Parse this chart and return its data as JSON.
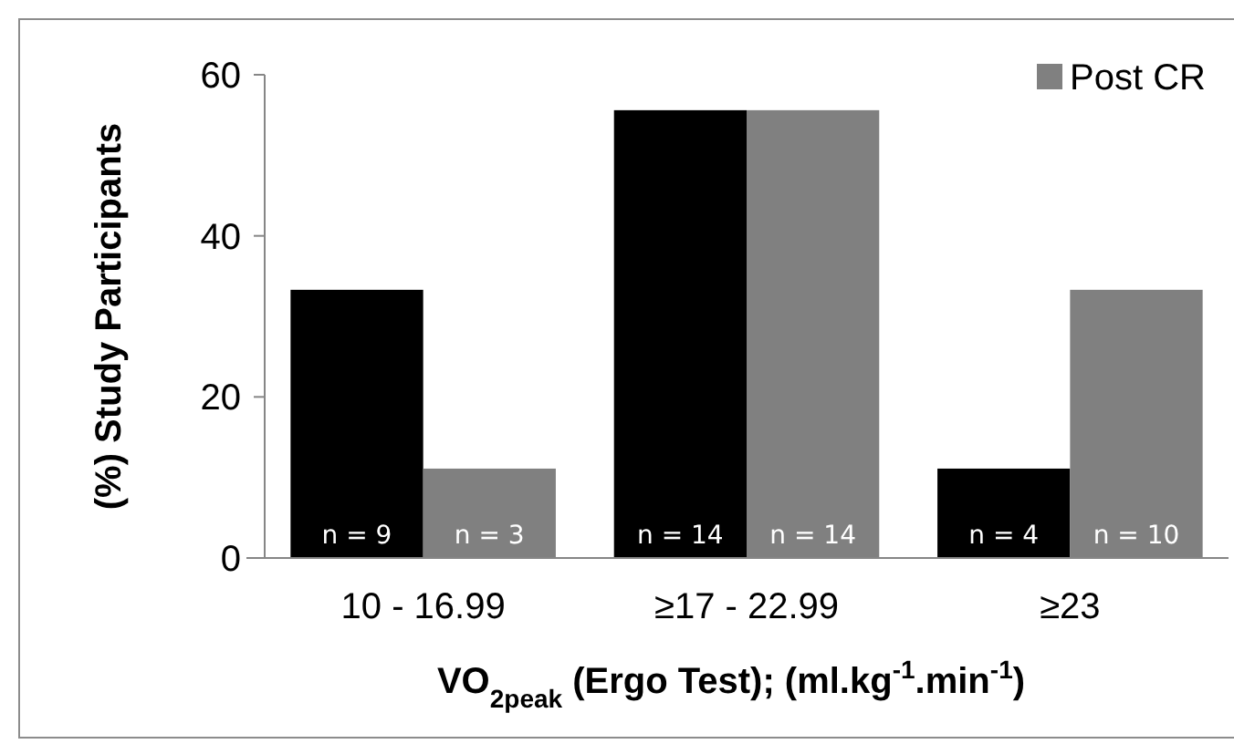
{
  "chart_data": {
    "type": "bar",
    "xlabel": "VO$_{2peak}$ (Ergo Test); (ml.kg$^{-1}$.min$^{-1}$)",
    "ylabel": "(%) Study Participants",
    "categories": [
      "10 - 16.99",
      "≥17 - 22.99",
      "≥23"
    ],
    "series": [
      {
        "color": "#000000",
        "values": [
          33.3,
          55.6,
          11.1
        ]
      },
      {
        "name": "Post CR",
        "color": "#808080",
        "values": [
          11.1,
          55.6,
          33.3
        ]
      }
    ],
    "annotations": [
      "n = 9",
      "n = 3",
      "n = 14",
      "n = 14",
      "n = 4",
      "n = 10"
    ],
    "ylim": [
      0,
      60
    ],
    "yticks": [
      0,
      20,
      40,
      60
    ],
    "legend": "top right",
    "grid": false
  }
}
